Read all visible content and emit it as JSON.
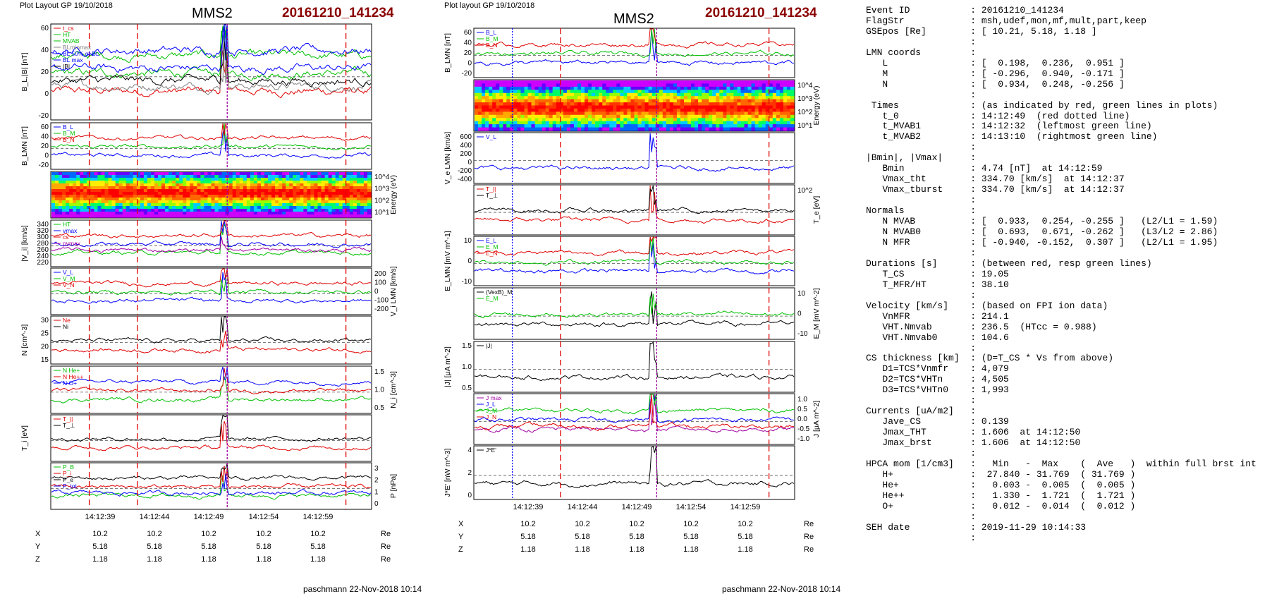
{
  "left": {
    "layout_title": "Plot Layout GP 19/10/2018",
    "spacecraft": "MMS2",
    "event": "20161210_141234",
    "footer": "paschmann 22-Nov-2018 10:14",
    "panels": [
      {
        "ylabel": "B_L,|B| [nT]",
        "ticks": [
          "60",
          "40",
          "20",
          "0",
          "-20"
        ],
        "right_ticks": [],
        "legend": [
          "t_cs",
          "HT",
          "MVAB",
          "BLminmax",
          "BL 50% of BL",
          "BL max",
          "|B|"
        ],
        "legend_colors": [
          "#e00000",
          "#00c000",
          "#00c000",
          "#808080",
          "#0000ff",
          "#0000ff",
          "#000000"
        ]
      },
      {
        "ylabel": "B_LMN [nT]",
        "ticks": [
          "60",
          "40",
          "20",
          "0",
          "-20"
        ],
        "right_ticks": [],
        "legend": [
          "B_L",
          "B_M",
          "B_N"
        ],
        "legend_colors": [
          "#0000ff",
          "#00c000",
          "#e00000"
        ]
      },
      {
        "ylabel": "Energy (eV)",
        "ticks": [],
        "right_ticks": [
          "10^4",
          "10^3",
          "10^2",
          "10^1"
        ],
        "legend": [],
        "legend_colors": []
      },
      {
        "ylabel": "|V_i| [km/s]",
        "ticks": [
          "340",
          "320",
          "300",
          "280",
          "260",
          "240",
          "220"
        ],
        "right_ticks": [],
        "legend": [
          "HT",
          "vmax",
          "cs",
          "pvmax"
        ],
        "legend_colors": [
          "#00c000",
          "#0000ff",
          "#e00000",
          "#a000a0"
        ]
      },
      {
        "ylabel": "V_i LMN [km/s]",
        "ticks": [],
        "right_ticks": [
          "200",
          "100",
          "0",
          "-100",
          "-200"
        ],
        "legend": [
          "V_L",
          "V_M",
          "V_N"
        ],
        "legend_colors": [
          "#0000ff",
          "#00c000",
          "#e00000"
        ]
      },
      {
        "ylabel": "N [cm^-3]",
        "ticks": [
          "30",
          "25",
          "20",
          "15"
        ],
        "right_ticks": [],
        "legend": [
          "Ne",
          "Ni"
        ],
        "legend_colors": [
          "#e00000",
          "#000000"
        ]
      },
      {
        "ylabel": "N_i [cm^-3]",
        "ticks": [],
        "right_ticks": [
          "1.5",
          "1.0",
          "0.5"
        ],
        "legend": [
          "N He+",
          "N He++",
          "N O+"
        ],
        "legend_colors": [
          "#00c000",
          "#e00000",
          "#0000ff"
        ]
      },
      {
        "ylabel": "T_i [eV]",
        "ticks": [],
        "right_ticks": [],
        "legend": [
          "T_||",
          "T_⊥"
        ],
        "legend_colors": [
          "#e00000",
          "#000000"
        ]
      },
      {
        "ylabel": "P [nPa]",
        "ticks": [],
        "right_ticks": [
          "3",
          "2",
          "1",
          "0"
        ],
        "legend": [
          "P_B",
          "P_i",
          "P_e",
          "P_tot"
        ],
        "legend_colors": [
          "#00c000",
          "#e00000",
          "#000000",
          "#0000ff"
        ]
      }
    ],
    "time_ticks": [
      "14:12:39",
      "14:12:44",
      "14:12:49",
      "14:12:54",
      "14:12:59"
    ],
    "coords": [
      {
        "axis": "X",
        "values": [
          "10.2",
          "10.2",
          "10.2",
          "10.2",
          "10.2"
        ],
        "unit": "Re"
      },
      {
        "axis": "Y",
        "values": [
          "5.18",
          "5.18",
          "5.18",
          "5.18",
          "5.18"
        ],
        "unit": "Re"
      },
      {
        "axis": "Z",
        "values": [
          "1.18",
          "1.18",
          "1.18",
          "1.18",
          "1.18"
        ],
        "unit": "Re"
      }
    ]
  },
  "middle": {
    "layout_title": "Plot layout GP 19/10/2018",
    "spacecraft": "MMS2",
    "event": "20161210_141234",
    "footer": "paschmann 22-Nov-2018 10:14",
    "panels": [
      {
        "ylabel": "B_LMN [nT]",
        "ticks": [
          "60",
          "40",
          "20",
          "0",
          "-20"
        ],
        "right_ticks": [],
        "legend": [
          "B_L",
          "B_M",
          "B_N"
        ],
        "legend_colors": [
          "#0000ff",
          "#00c000",
          "#e00000"
        ]
      },
      {
        "ylabel": "Energy (eV)",
        "ticks": [],
        "right_ticks": [
          "10^4",
          "10^3",
          "10^2",
          "10^1"
        ],
        "legend": [],
        "legend_colors": []
      },
      {
        "ylabel": "V_e LMN [km/s]",
        "ticks": [
          "600",
          "400",
          "200",
          "0",
          "-200",
          "-400"
        ],
        "right_ticks": [],
        "legend": [
          "V_L"
        ],
        "legend_colors": [
          "#0000ff"
        ]
      },
      {
        "ylabel": "T_e [eV]",
        "ticks": [],
        "right_ticks": [
          "10^2"
        ],
        "legend": [
          "T_||",
          "T_⊥"
        ],
        "legend_colors": [
          "#e00000",
          "#000000"
        ]
      },
      {
        "ylabel": "E_LMN [mV m^-1]",
        "ticks": [
          "10",
          "0",
          "-10"
        ],
        "right_ticks": [],
        "legend": [
          "E_L",
          "E_M",
          "E_N"
        ],
        "legend_colors": [
          "#0000ff",
          "#00c000",
          "#e00000"
        ]
      },
      {
        "ylabel": "E_M [mV m^-2]",
        "ticks": [],
        "right_ticks": [
          "10",
          "0",
          "-10"
        ],
        "legend": [
          "(VexB)_M",
          "E_M"
        ],
        "legend_colors": [
          "#000000",
          "#00c000"
        ]
      },
      {
        "ylabel": "|J| [μA m^-2]",
        "ticks": [
          "1.5",
          "1.0",
          "0.5"
        ],
        "right_ticks": [],
        "legend": [
          "|J|"
        ],
        "legend_colors": [
          "#000000"
        ]
      },
      {
        "ylabel": "J [μA m^-2]",
        "ticks": [],
        "right_ticks": [
          "1.0",
          "0.5",
          "0.0",
          "-0.5",
          "-1.0"
        ],
        "legend": [
          "J max",
          "J_L",
          "J_M",
          "J_N"
        ],
        "legend_colors": [
          "#a000a0",
          "#0000ff",
          "#00c000",
          "#e00000"
        ]
      },
      {
        "ylabel": "J*E' [nW m^-3]",
        "ticks": [
          "4",
          "2",
          "0"
        ],
        "right_ticks": [],
        "legend": [
          "J*E'"
        ],
        "legend_colors": [
          "#000000"
        ]
      }
    ],
    "time_ticks": [
      "14:12:39",
      "14:12:44",
      "14:12:49",
      "14:12:54",
      "14:12:59"
    ],
    "coords": [
      {
        "axis": "X",
        "values": [
          "10.2",
          "10.2",
          "10.2",
          "10.2",
          "10.2"
        ],
        "unit": "Re"
      },
      {
        "axis": "Y",
        "values": [
          "5.18",
          "5.18",
          "5.18",
          "5.18",
          "5.18"
        ],
        "unit": "Re"
      },
      {
        "axis": "Z",
        "values": [
          "1.18",
          "1.18",
          "1.18",
          "1.18",
          "1.18"
        ],
        "unit": "Re"
      }
    ]
  },
  "info_lines": [
    "Event ID           : 20161210_141234",
    "FlagStr            : msh,udef,mon,mf,mult,part,keep",
    "GSEpos [Re]        : [ 10.21, 5.18, 1.18 ]",
    "                   :",
    "LMN coords         :",
    "   L               : [  0.198,  0.236,  0.951 ]",
    "   M               : [ -0.296,  0.940, -0.171 ]",
    "   N               : [  0.934,  0.248, -0.256 ]",
    "                   :",
    " Times             : (as indicated by red, green lines in plots)",
    "   t_0             : 14:12:49  (red dotted line)",
    "   t_MVAB1         : 14:12:32  (leftmost green line)",
    "   t_MVAB2         : 14:13:10  (rightmost green line)",
    "                   :",
    "|Bmin|, |Vmax|     :",
    "   Bmin            : 4.74 [nT]  at 14:12:59",
    "   Vmax_tht        : 334.70 [km/s]  at 14:12:37",
    "   Vmax_tburst     : 334.70 [km/s]  at 14:12:37",
    "                   :",
    "Normals            :",
    "   N MVAB          : [  0.933,  0.254, -0.255 ]   (L2/L1 = 1.59)",
    "   N MVAB0         : [  0.693,  0.671, -0.262 ]   (L3/L2 = 2.86)",
    "   N MFR           : [ -0.940, -0.152,  0.307 ]   (L2/L1 = 1.95)",
    "                   :",
    "Durations [s]      : (between red, resp green lines)",
    "   T_CS            : 19.05",
    "   T_MFR/HT        : 38.10",
    "                   :",
    "Velocity [km/s]    : (based on FPI ion data)",
    "   VnMFR           : 214.1",
    "   VHT.Nmvab       : 236.5  (HTcc = 0.988)",
    "   VHT.Nmvab0      : 104.6",
    "                   :",
    "CS thickness [km]  : (D=T_CS * Vs from above)",
    "   D1=TCS*Vnmfr    : 4,079",
    "   D2=TCS*VHTn     : 4,505",
    "   D3=TCS*VHTn0    : 1,993",
    "                   :",
    "Currents [uA/m2]   :",
    "   Jave_CS         : 0.139",
    "   Jmax_THT        : 1.606  at 14:12:50",
    "   Jmax_brst       : 1.606  at 14:12:50",
    "                   :",
    "HPCA mom [1/cm3]   :   Min   -  Max    (  Ave   )  within full brst int",
    "   H+              :  27.840 - 31.769  ( 31.769 )",
    "   He+             :   0.003 -  0.005  (  0.005 )",
    "   He++            :   1.330 -  1.721  (  1.721 )",
    "   O+              :   0.012 -  0.014  (  0.012 )",
    "                   :",
    "SEH date           : 2019-11-29 10:14:33",
    "                   :"
  ],
  "chart_data": [
    {
      "type": "line",
      "title": "MMS2 20161210_141234 (left)",
      "x_ticks": [
        "14:12:39",
        "14:12:44",
        "14:12:49",
        "14:12:54",
        "14:12:59"
      ],
      "panels": [
        "B_L,|B| [nT]",
        "B_LMN [nT]",
        "Energy (eV)",
        "|V_i| [km/s]",
        "V_i LMN [km/s]",
        "N [cm^-3]",
        "N_i [cm^-3]",
        "T_i [eV]",
        "P [nPa]"
      ]
    },
    {
      "type": "line",
      "title": "MMS2 20161210_141234 (middle)",
      "x_ticks": [
        "14:12:39",
        "14:12:44",
        "14:12:49",
        "14:12:54",
        "14:12:59"
      ],
      "panels": [
        "B_LMN [nT]",
        "Energy (eV)",
        "V_e LMN [km/s]",
        "T_e [eV]",
        "E_LMN [mV m^-1]",
        "E_M [mV m^-2]",
        "|J| [μA m^-2]",
        "J [μA m^-2]",
        "J*E' [nW m^-3]"
      ]
    }
  ]
}
